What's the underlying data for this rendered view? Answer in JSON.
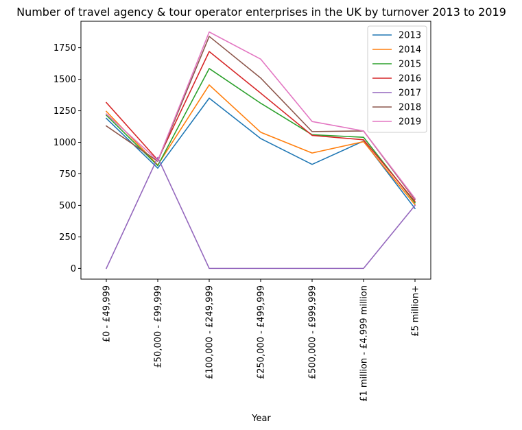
{
  "chart_data": {
    "type": "line",
    "title": "Number of travel agency & tour operator enterprises in the UK by turnover 2013 to 2019",
    "xlabel": "Year",
    "ylabel": "",
    "categories": [
      "£0 - £49,999",
      "£50,000 - £99,999",
      "£100,000 - £249,999",
      "£250,000 - £499,999",
      "£500,000 - £999,999",
      "£1 million - £4.999 million",
      "£5 million+"
    ],
    "yticks": [
      0,
      250,
      500,
      750,
      1000,
      1250,
      1500,
      1750
    ],
    "ylim": [
      -85,
      1960
    ],
    "grid": false,
    "legend_position": "top-right",
    "series": [
      {
        "name": "2013",
        "color": "#1f77b4",
        "values": [
          1190,
          795,
          1350,
          1030,
          825,
          1010,
          475
        ]
      },
      {
        "name": "2014",
        "color": "#ff7f0e",
        "values": [
          1245,
          820,
          1455,
          1080,
          915,
          1005,
          505
        ]
      },
      {
        "name": "2015",
        "color": "#2ca02c",
        "values": [
          1215,
          815,
          1585,
          1310,
          1060,
          1040,
          520
        ]
      },
      {
        "name": "2016",
        "color": "#d62728",
        "values": [
          1315,
          860,
          1720,
          1390,
          1055,
          1020,
          530
        ]
      },
      {
        "name": "2017",
        "color": "#9467bd",
        "values": [
          0,
          880,
          0,
          0,
          0,
          0,
          500
        ]
      },
      {
        "name": "2018",
        "color": "#8c564b",
        "values": [
          1130,
          850,
          1840,
          1510,
          1085,
          1090,
          545
        ]
      },
      {
        "name": "2019",
        "color": "#e377c2",
        "values": [
          1225,
          855,
          1875,
          1660,
          1165,
          1090,
          555
        ]
      }
    ]
  }
}
